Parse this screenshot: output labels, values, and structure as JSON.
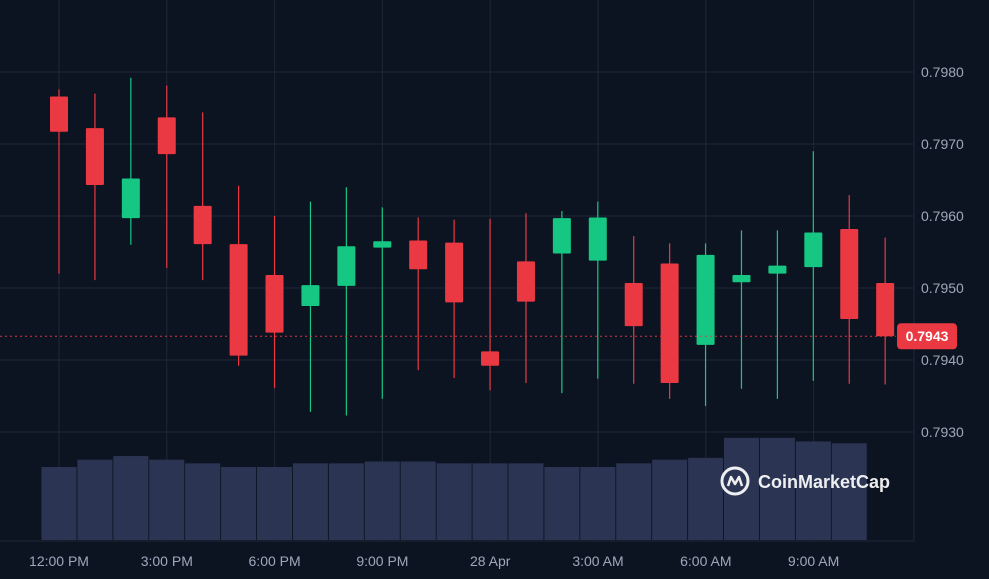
{
  "chart_data": {
    "type": "candlestick",
    "y_tick_labels": [
      "0.7980",
      "0.7970",
      "0.7960",
      "0.7950",
      "0.7940",
      "0.7930"
    ],
    "ylim": [
      0.7925,
      0.7992
    ],
    "x_tick_labels": [
      "12:00 PM",
      "3:00 PM",
      "6:00 PM",
      "9:00 PM",
      "28 Apr",
      "3:00 AM",
      "6:00 AM",
      "9:00 AM"
    ],
    "current_price": "0.7943",
    "current_price_value": 0.79433,
    "grid": true,
    "candles": [
      {
        "open": 0.79766,
        "high": 0.79776,
        "low": 0.7952,
        "close": 0.79717
      },
      {
        "open": 0.79722,
        "high": 0.7977,
        "low": 0.79511,
        "close": 0.79643
      },
      {
        "open": 0.79597,
        "high": 0.79792,
        "low": 0.7956,
        "close": 0.79652
      },
      {
        "open": 0.79737,
        "high": 0.79781,
        "low": 0.79528,
        "close": 0.79686
      },
      {
        "open": 0.79614,
        "high": 0.79744,
        "low": 0.79511,
        "close": 0.79561
      },
      {
        "open": 0.79561,
        "high": 0.79642,
        "low": 0.79392,
        "close": 0.79406
      },
      {
        "open": 0.79518,
        "high": 0.796,
        "low": 0.79361,
        "close": 0.79438
      },
      {
        "open": 0.79475,
        "high": 0.7962,
        "low": 0.79328,
        "close": 0.79504
      },
      {
        "open": 0.79503,
        "high": 0.7964,
        "low": 0.79323,
        "close": 0.79558
      },
      {
        "open": 0.79556,
        "high": 0.79612,
        "low": 0.79346,
        "close": 0.79565
      },
      {
        "open": 0.79566,
        "high": 0.79598,
        "low": 0.79386,
        "close": 0.79526
      },
      {
        "open": 0.79563,
        "high": 0.79595,
        "low": 0.79375,
        "close": 0.7948
      },
      {
        "open": 0.79412,
        "high": 0.79596,
        "low": 0.79358,
        "close": 0.79392
      },
      {
        "open": 0.79537,
        "high": 0.79604,
        "low": 0.79368,
        "close": 0.79481
      },
      {
        "open": 0.79548,
        "high": 0.79607,
        "low": 0.79354,
        "close": 0.79597
      },
      {
        "open": 0.79538,
        "high": 0.7962,
        "low": 0.79374,
        "close": 0.79598
      },
      {
        "open": 0.79507,
        "high": 0.79572,
        "low": 0.79367,
        "close": 0.79447
      },
      {
        "open": 0.79534,
        "high": 0.79562,
        "low": 0.79346,
        "close": 0.79368
      },
      {
        "open": 0.79421,
        "high": 0.79562,
        "low": 0.79336,
        "close": 0.79546
      },
      {
        "open": 0.79508,
        "high": 0.7958,
        "low": 0.7936,
        "close": 0.79518
      },
      {
        "open": 0.7952,
        "high": 0.7958,
        "low": 0.79346,
        "close": 0.79531
      },
      {
        "open": 0.79529,
        "high": 0.7969,
        "low": 0.79371,
        "close": 0.79577
      },
      {
        "open": 0.79582,
        "high": 0.79629,
        "low": 0.79367,
        "close": 0.79457
      },
      {
        "open": 0.79507,
        "high": 0.7957,
        "low": 0.79366,
        "close": 0.79433
      }
    ],
    "volume": [
      0.2,
      0.22,
      0.23,
      0.22,
      0.21,
      0.2,
      0.2,
      0.21,
      0.21,
      0.215,
      0.215,
      0.21,
      0.21,
      0.21,
      0.2,
      0.2,
      0.21,
      0.22,
      0.225,
      0.28,
      0.28,
      0.27,
      0.265,
      0.0
    ],
    "colors": {
      "background": "#0d1421",
      "grid": "#1f2636",
      "up": "#16c784",
      "down": "#ea3943",
      "volume": "#2b3553",
      "axis_text": "#a1a7bb",
      "price_tag_bg": "#ea3943"
    }
  },
  "watermark": {
    "text": "CoinMarketCap",
    "icon": "coinmarketcap-logo-icon"
  }
}
